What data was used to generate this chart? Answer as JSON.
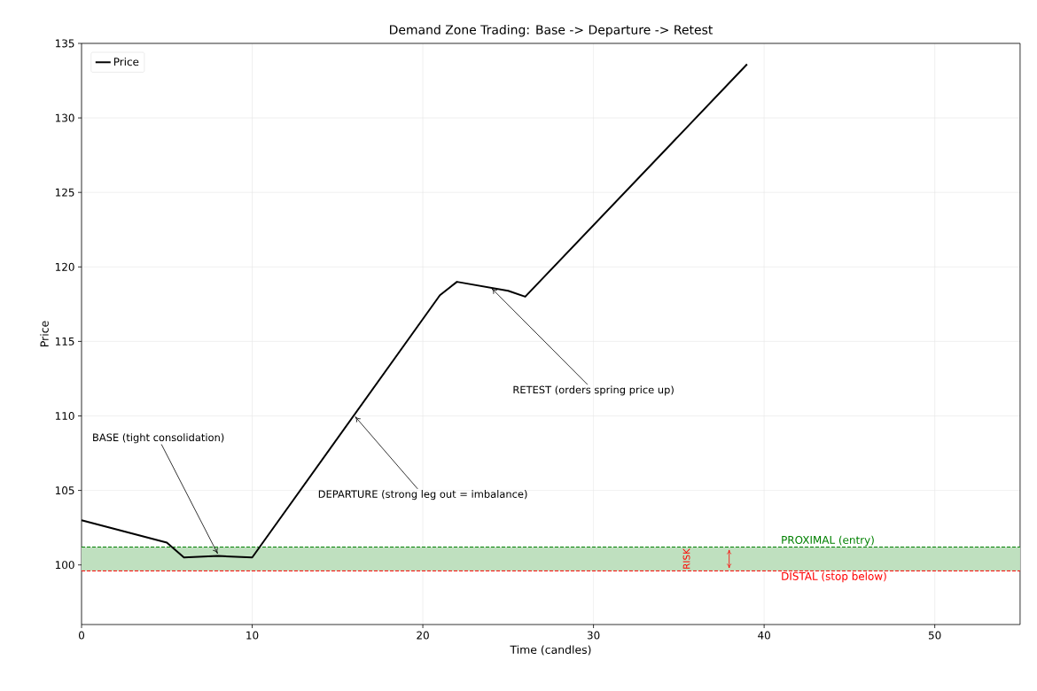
{
  "chart_data": {
    "type": "line",
    "title": "Demand Zone Trading: Base -> Departure -> Retest",
    "xlabel": "Time (candles)",
    "ylabel": "Price",
    "x": [
      0,
      5,
      6,
      8,
      10,
      21,
      22,
      25,
      26,
      39
    ],
    "series": [
      {
        "name": "Price",
        "color": "#000000",
        "values": [
          103,
          101.5,
          100.5,
          100.6,
          100.5,
          118.1,
          119.0,
          118.4,
          118.0,
          133.6
        ]
      }
    ],
    "xlim": [
      0,
      55
    ],
    "ylim": [
      96,
      135
    ],
    "xticks": [
      0,
      10,
      20,
      30,
      40,
      50
    ],
    "yticks": [
      100,
      105,
      110,
      115,
      120,
      125,
      130,
      135
    ],
    "grid": true,
    "legend": "top left",
    "line_style": "solid",
    "marker": "none",
    "ref_lines": [
      {
        "axis": "y",
        "value": 101.2,
        "label": "PROXIMAL (entry)",
        "color": "#008000",
        "line_style": "dashed"
      },
      {
        "axis": "y",
        "value": 99.6,
        "label": "DISTAL (stop below)",
        "color": "#ff0000",
        "line_style": "dashed"
      }
    ],
    "bands": [
      {
        "axis": "y",
        "from": 99.6,
        "to": 101.2,
        "color": "#bfe0bf"
      }
    ],
    "annotations": [
      {
        "text": "BASE (tight consolidation)",
        "x": 8,
        "y": 100.7
      },
      {
        "text": "DEPARTURE (strong leg out = imbalance)",
        "x": 16,
        "y": 110
      },
      {
        "text": "RETEST (orders spring price up)",
        "x": 24,
        "y": 118.6
      },
      "RISK"
    ]
  }
}
